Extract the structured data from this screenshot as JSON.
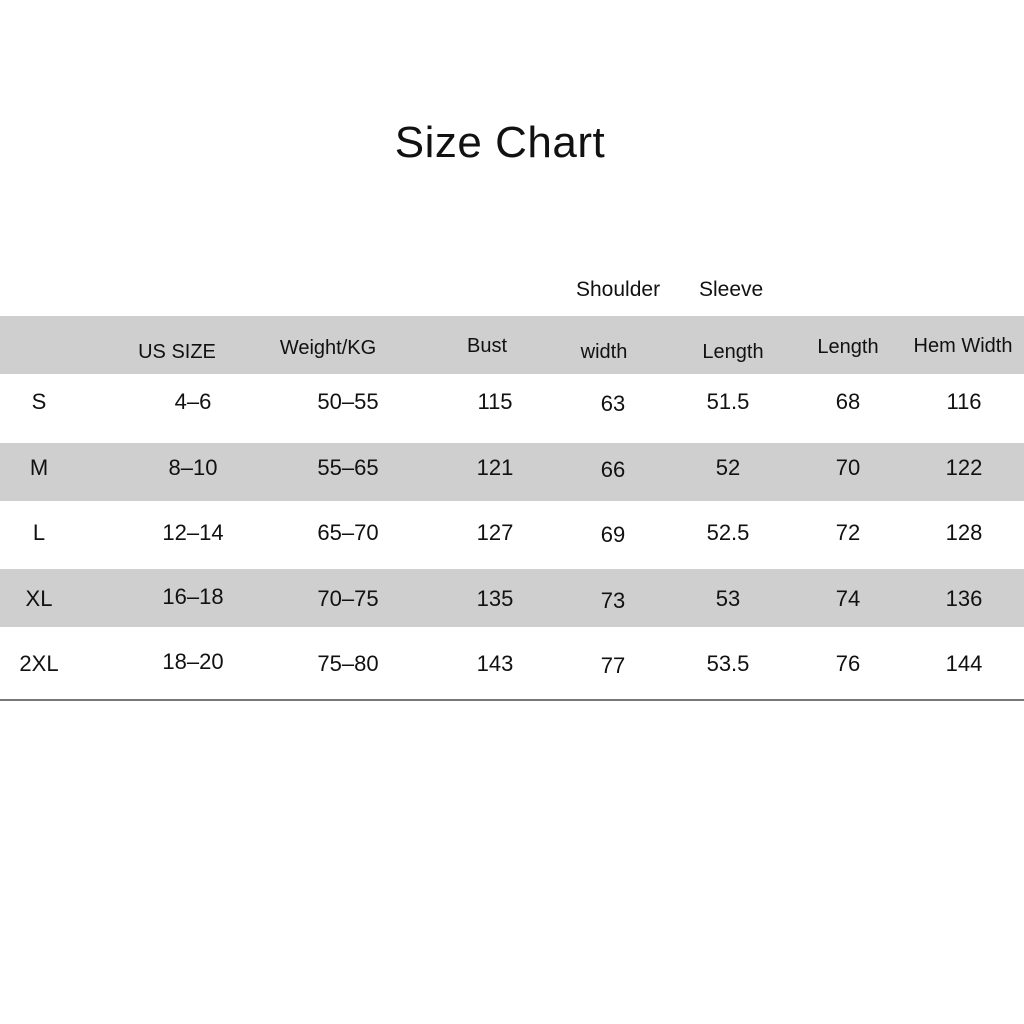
{
  "title": "Size Chart",
  "header_top": {
    "shoulder": "Shoulder",
    "sleeve": "Sleeve"
  },
  "columns": [
    "",
    "US SIZE",
    "Weight/KG",
    "Bust",
    "width",
    "Length",
    "Length",
    "Hem Width"
  ],
  "rows": [
    [
      "S",
      "4–6",
      "50–55",
      "115",
      "63",
      "51.5",
      "68",
      "116"
    ],
    [
      "M",
      "8–10",
      "55–65",
      "121",
      "66",
      "52",
      "70",
      "122"
    ],
    [
      "L",
      "12–14",
      "65–70",
      "127",
      "69",
      "52.5",
      "72",
      "128"
    ],
    [
      "XL",
      "16–18",
      "70–75",
      "135",
      "73",
      "53",
      "74",
      "136"
    ],
    [
      "2XL",
      "18–20",
      "75–80",
      "143",
      "77",
      "53.5",
      "76",
      "144"
    ]
  ]
}
